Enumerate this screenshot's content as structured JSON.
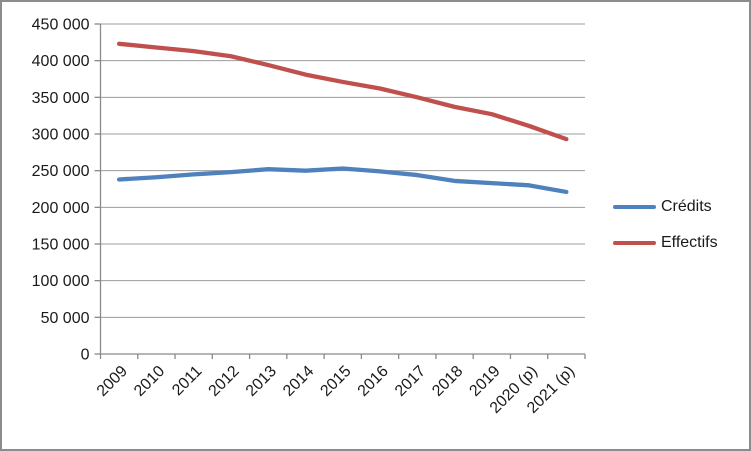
{
  "window": {
    "background": "#FFFFFF",
    "border_color": "#8C8C8C"
  },
  "chart_data": {
    "type": "line",
    "title": "",
    "xlabel": "",
    "ylabel": "",
    "categories": [
      "2009",
      "2010",
      "2011",
      "2012",
      "2013",
      "2014",
      "2015",
      "2016",
      "2017",
      "2018",
      "2019",
      "2020 (p)",
      "2021 (p)"
    ],
    "series": [
      {
        "name": "Crédits",
        "color": "#4F81BD",
        "values": [
          238000,
          241000,
          245000,
          248000,
          252000,
          250000,
          253000,
          249000,
          244000,
          236000,
          233000,
          230000,
          221000
        ]
      },
      {
        "name": "Effectifs",
        "color": "#C0504D",
        "values": [
          423000,
          418000,
          413000,
          406000,
          394000,
          381000,
          371000,
          362000,
          350000,
          337000,
          327000,
          311000,
          293000
        ]
      }
    ],
    "ylim": [
      0,
      450000
    ],
    "ytick_step": 50000,
    "ytick_labels": [
      "0",
      "50 000",
      "100 000",
      "150 000",
      "200 000",
      "250 000",
      "300 000",
      "350 000",
      "400 000",
      "450 000"
    ],
    "grid": true,
    "legend_position": "right",
    "axis_color": "#8A8A8A",
    "gridline_color": "#9C9C9C",
    "text_color": "#1A1A1A"
  },
  "legend": {
    "items": [
      {
        "label": "Crédits",
        "color": "#4F81BD"
      },
      {
        "label": "Effectifs",
        "color": "#C0504D"
      }
    ]
  }
}
